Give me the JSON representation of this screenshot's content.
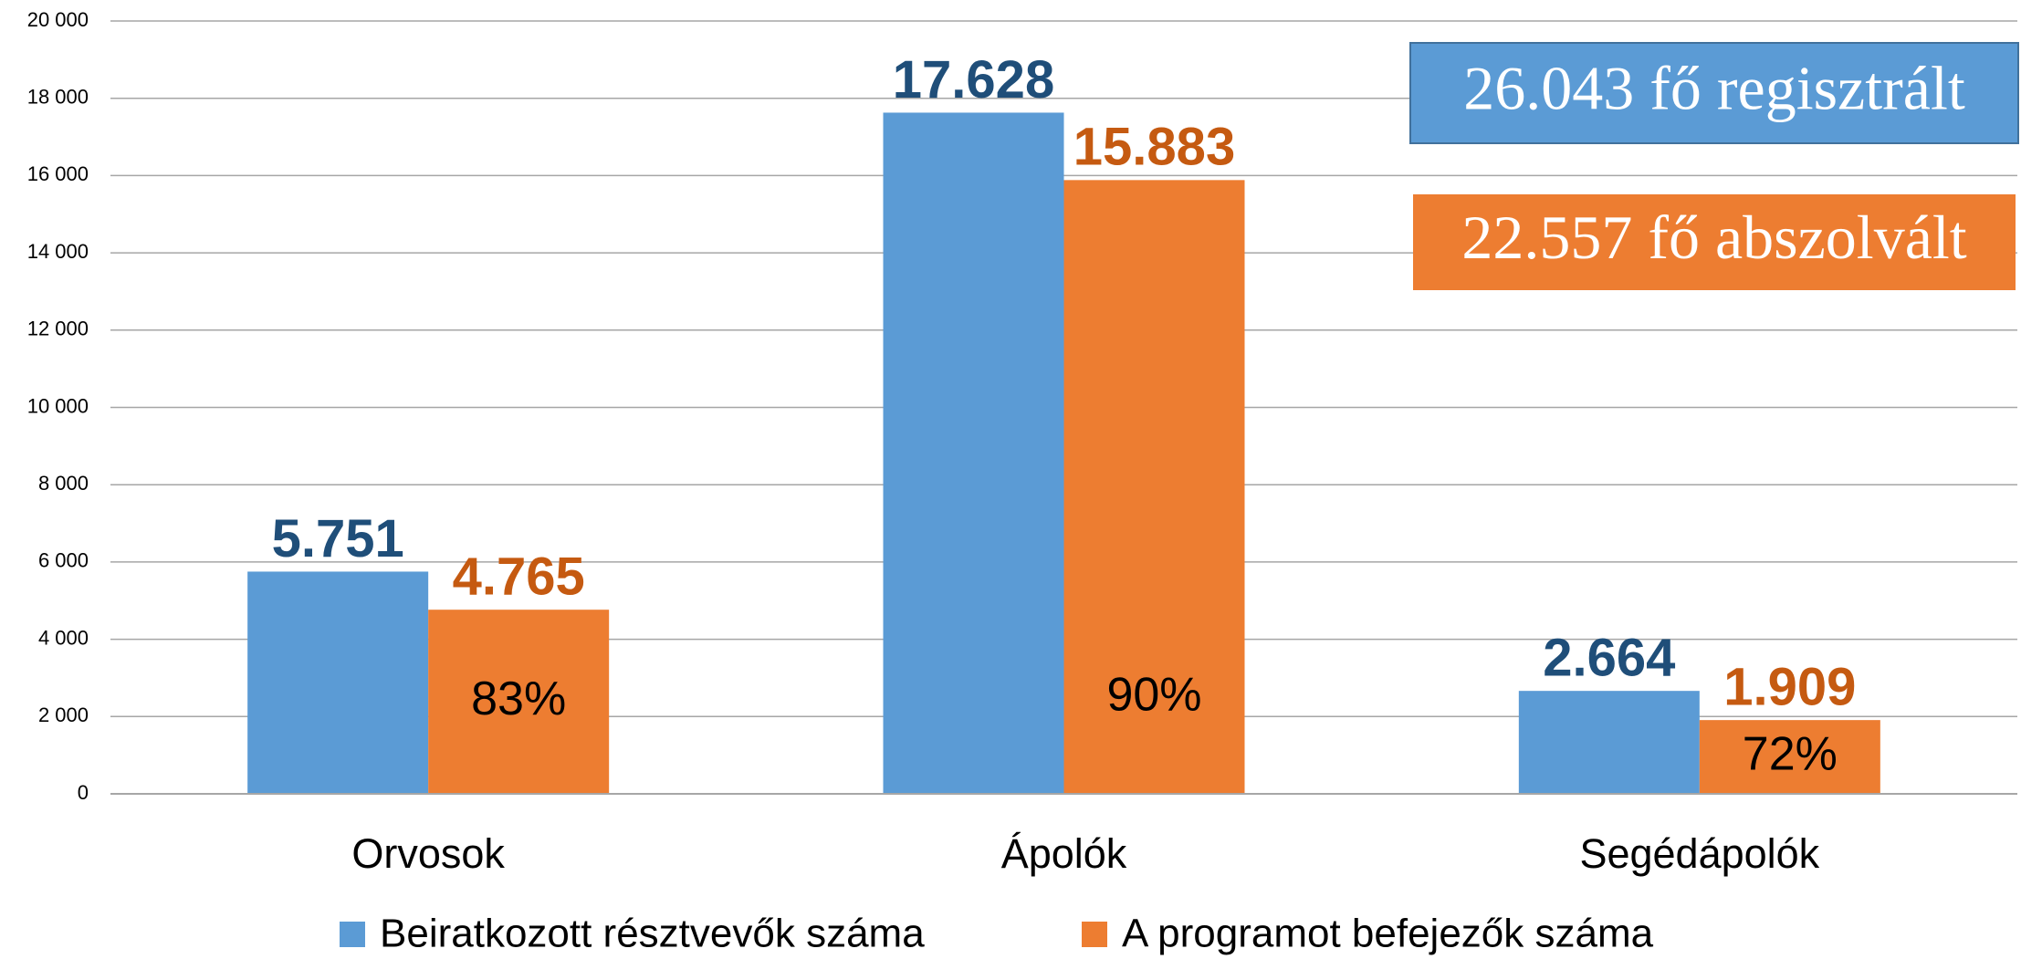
{
  "chart_data": {
    "type": "bar",
    "categories": [
      "Orvosok",
      "Ápolók",
      "Segédápolók"
    ],
    "series": [
      {
        "name": "Beiratkozott résztvevők száma",
        "color": "#5b9bd5",
        "label_color": "#1f4e79",
        "values": [
          5751,
          17628,
          2664
        ],
        "value_labels": [
          "5.751",
          "17.628",
          "2.664"
        ]
      },
      {
        "name": "A programot befejezők száma",
        "color": "#ed7d31",
        "label_color": "#c55a11",
        "values": [
          4765,
          15883,
          1909
        ],
        "value_labels": [
          "4.765",
          "15.883",
          "1.909"
        ],
        "inner_labels": [
          "83%",
          "90%",
          "72%"
        ]
      }
    ],
    "ylim": [
      0,
      20000
    ],
    "yticks": [
      0,
      {
        "value": 2000,
        "label": "2 000"
      },
      {
        "value": 4000,
        "label": "4 000"
      },
      {
        "value": 6000,
        "label": "6 000"
      },
      {
        "value": 8000,
        "label": "8 000"
      },
      {
        "value": 10000,
        "label": "10 000"
      },
      {
        "value": 12000,
        "label": "12 000"
      },
      {
        "value": 14000,
        "label": "14 000"
      },
      {
        "value": 16000,
        "label": "16 000"
      },
      {
        "value": 18000,
        "label": "18 000"
      },
      {
        "value": 20000,
        "label": "20 000"
      }
    ],
    "grid": true,
    "callouts": [
      {
        "text": "26.043 fő regisztrált",
        "color": "#5b9bd5"
      },
      {
        "text": "22.557 fő abszolvált",
        "color": "#ed7d31"
      }
    ]
  }
}
